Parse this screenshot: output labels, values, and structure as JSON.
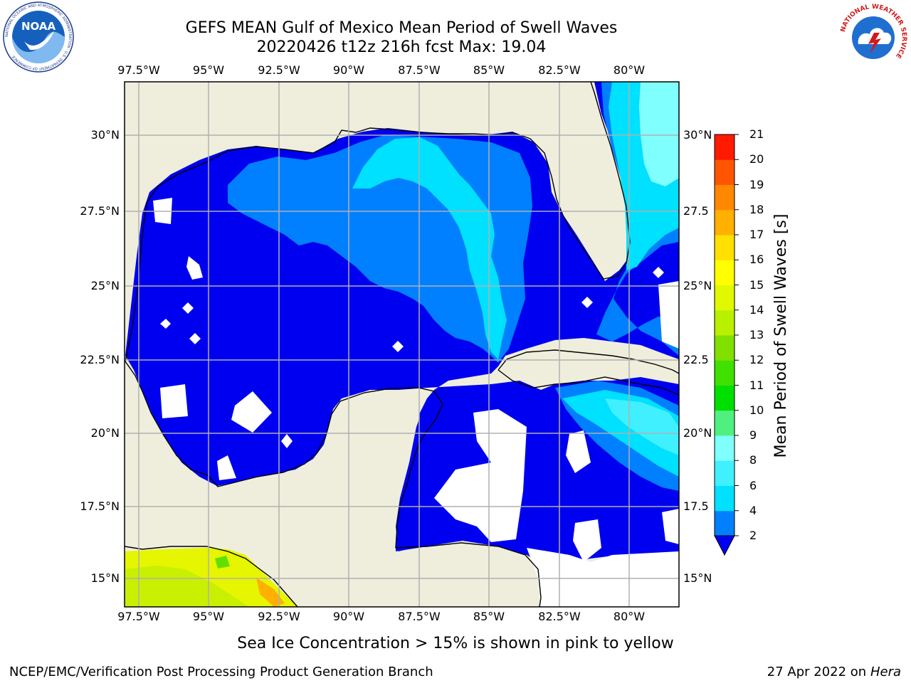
{
  "header": {
    "title_line1": "GEFS MEAN Gulf of Mexico Mean Period of Swell Waves",
    "title_line2": "20220426 t12z 216h fcst   Max: 19.04"
  },
  "logos": {
    "left": "NOAA",
    "left_ring_text": "NATIONAL OCEANIC AND ATMOSPHERIC ADMINISTRATION · U.S. DEPARTMENT OF COMMERCE",
    "right_ring_text": "NATIONAL WEATHER SERVICE"
  },
  "map": {
    "lon_ticks": [
      "97.5°W",
      "95°W",
      "92.5°W",
      "90°W",
      "87.5°W",
      "85°W",
      "82.5°W",
      "80°W"
    ],
    "lat_ticks_left": [
      "30°N",
      "27.5°N",
      "25°N",
      "22.5°N",
      "20°N",
      "17.5°N",
      "15°N"
    ],
    "lat_ticks_right": [
      "30°N",
      "27.5",
      "25°N",
      "22.5",
      "20°N",
      "17.5",
      "15°N"
    ],
    "land_color": "#efeedc",
    "grid_color": "#b0b0b0"
  },
  "colorbar": {
    "label": "Mean Period of Swell Waves [s]",
    "ticks": [
      "2",
      "4",
      "6",
      "8",
      "9",
      "10",
      "11",
      "12",
      "13",
      "14",
      "15",
      "16",
      "17",
      "18",
      "19",
      "20",
      "21"
    ],
    "colors": [
      "#0080ff",
      "#00e0ff",
      "#40f0ff",
      "#80ffff",
      "#50f080",
      "#00e000",
      "#40e000",
      "#80e000",
      "#b8f000",
      "#e0f800",
      "#ffff00",
      "#ffe000",
      "#ffb000",
      "#ff8800",
      "#ff5500",
      "#ff1a00"
    ],
    "extend_color": "#0000f0"
  },
  "footer": {
    "note": "Sea Ice Concentration > 15% is shown in pink to yellow",
    "left": "NCEP/EMC/Verification Post Processing Product Generation Branch",
    "right_date": "27 Apr 2022 on",
    "right_machine": "Hera"
  }
}
